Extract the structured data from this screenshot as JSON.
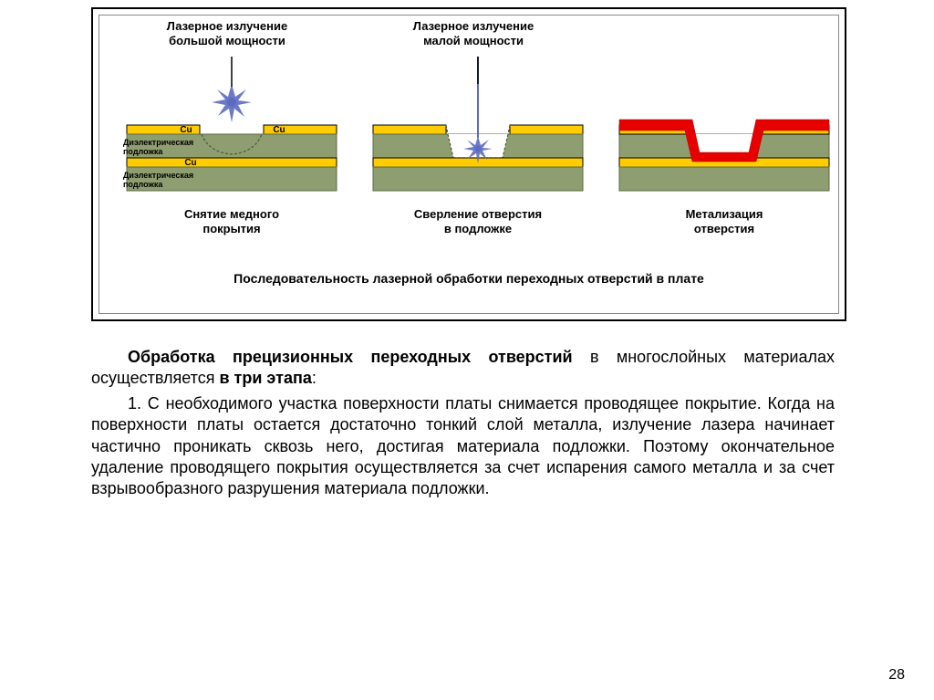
{
  "diagram": {
    "topLabels": {
      "highPower": "Лазерное излучение\nбольшой мощности",
      "lowPower": "Лазерное излучение\nмалой мощности"
    },
    "stageLabels": {
      "s1": "Снятие медного\nпокрытия",
      "s2": "Сверление отверстия\nв подложке",
      "s3": "Метализация\nотверстия"
    },
    "caption": "Последовательность лазерной обработки переходных отверстий в плате",
    "layerLabels": {
      "cu": "Cu",
      "sub1": "Диэлектрическая подложка",
      "sub2": "Диэлектрическая подложка"
    },
    "colors": {
      "copper": "#ffcc00",
      "copperStroke": "#000000",
      "substrate": "#8f9e70",
      "substrateStroke": "#5a6b45",
      "metallize": "#e60000",
      "spark": "#5c6bc0",
      "dashed": "#4a5a3a"
    },
    "geom": {
      "layerW": 230,
      "cuH": 10,
      "subH": 30,
      "stack1X": 30,
      "stack2X": 300,
      "stack3X": 570,
      "stackTop": 120,
      "gapW": 56,
      "gapX1": 120,
      "beamTop2": 50
    }
  },
  "body": {
    "p1a": "Обработка прецизионных переходных отверстий",
    "p1b": " в многослойных материалах осуществляется ",
    "p1c": "в три этапа",
    "p1d": ":",
    "p2": "1. С необходимого участка поверхности платы снимается проводящее покрытие. Когда на поверхности платы остается достаточно тонкий слой металла, излучение лазера начинает частично проникать сквозь него, достигая материала подложки. Поэтому окончательное удаление проводящего покрытия осуществляется за счет испарения самого металла  и за счет взрывообразного разрушения материала подложки."
  },
  "pageNumber": "28"
}
